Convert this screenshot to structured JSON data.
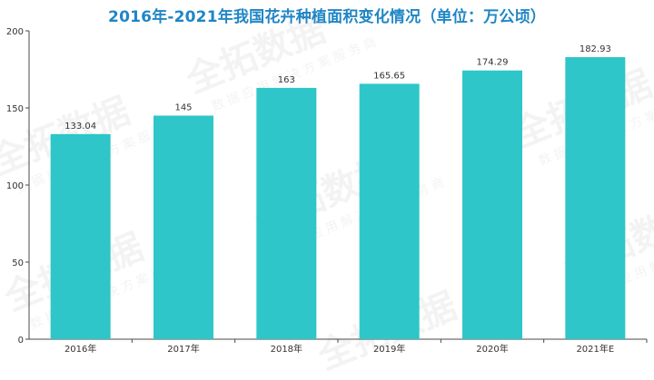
{
  "chart_data": {
    "type": "bar",
    "title": "2016年-2021年我国花卉种植面积变化情况（单位：万公顷）",
    "categories": [
      "2016年",
      "2017年",
      "2018年",
      "2019年",
      "2020年",
      "2021年E"
    ],
    "values": [
      133.04,
      145,
      163,
      165.65,
      174.29,
      182.93
    ],
    "value_labels": [
      "133.04",
      "145",
      "163",
      "165.65",
      "174.29",
      "182.93"
    ],
    "ylim": [
      0,
      200
    ],
    "yticks": [
      0,
      50,
      100,
      150,
      200
    ],
    "grid": false,
    "legend": "none",
    "colors": {
      "bar": "#2ec6c8",
      "title": "#1f86c6",
      "axis": "#4a4a4a",
      "text": "#333333"
    }
  },
  "watermark": {
    "brand": "全拓数据",
    "tagline": "数据应用解决方案服务商"
  }
}
